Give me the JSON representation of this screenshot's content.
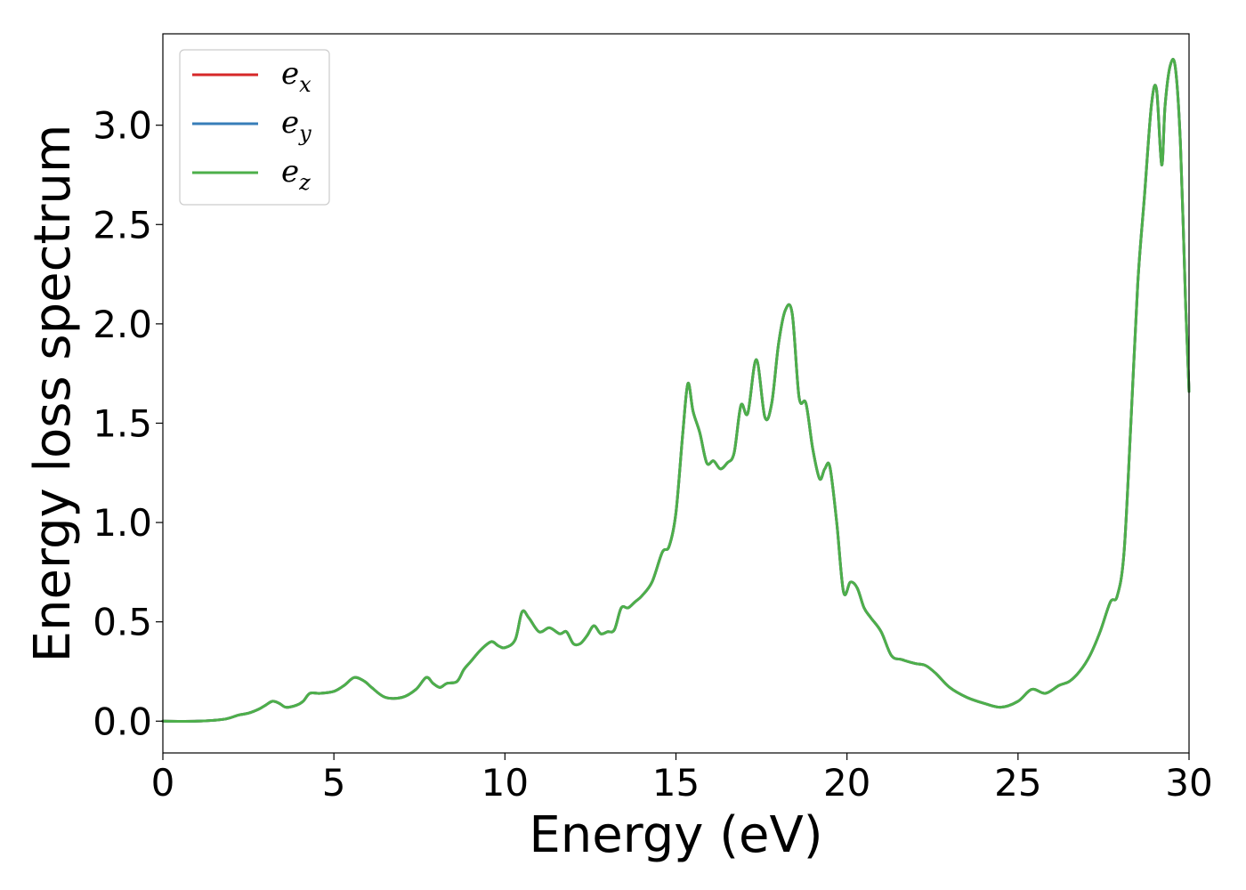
{
  "chart_data": {
    "type": "line",
    "title": "",
    "xlabel": "Energy (eV)",
    "ylabel": "Energy loss spectrum",
    "xlim": [
      0,
      30
    ],
    "ylim": [
      -0.16,
      3.46
    ],
    "xticks": [
      0,
      5,
      10,
      15,
      20,
      25,
      30
    ],
    "xtick_labels": [
      "0",
      "5",
      "10",
      "15",
      "20",
      "25",
      "30"
    ],
    "yticks": [
      0.0,
      0.5,
      1.0,
      1.5,
      2.0,
      2.5,
      3.0
    ],
    "ytick_labels": [
      "0.0",
      "0.5",
      "1.0",
      "1.5",
      "2.0",
      "2.5",
      "3.0"
    ],
    "grid": false,
    "legend_position": "top-left",
    "series": [
      {
        "name": "e_x",
        "label_base": "e",
        "label_sub": "x",
        "color": "#d62728"
      },
      {
        "name": "e_y",
        "label_base": "e",
        "label_sub": "y",
        "color": "#377eb8"
      },
      {
        "name": "e_z",
        "label_base": "e",
        "label_sub": "z",
        "color": "#4daf4a"
      }
    ],
    "x": [
      0,
      1,
      1.8,
      2.2,
      2.5,
      2.8,
      3.0,
      3.2,
      3.4,
      3.6,
      3.9,
      4.1,
      4.3,
      4.6,
      5.0,
      5.3,
      5.6,
      5.9,
      6.1,
      6.5,
      7.0,
      7.4,
      7.7,
      7.9,
      8.1,
      8.3,
      8.6,
      8.8,
      9.0,
      9.3,
      9.6,
      9.8,
      10.0,
      10.3,
      10.5,
      10.7,
      11.0,
      11.3,
      11.6,
      11.8,
      12.0,
      12.2,
      12.4,
      12.6,
      12.8,
      13.0,
      13.2,
      13.4,
      13.6,
      13.8,
      14.0,
      14.3,
      14.6,
      14.8,
      15.0,
      15.2,
      15.35,
      15.5,
      15.7,
      15.9,
      16.1,
      16.3,
      16.5,
      16.7,
      16.9,
      17.1,
      17.35,
      17.6,
      17.8,
      18.0,
      18.2,
      18.4,
      18.6,
      18.8,
      19.0,
      19.2,
      19.35,
      19.5,
      19.7,
      19.9,
      20.1,
      20.3,
      20.5,
      20.7,
      21.0,
      21.3,
      21.6,
      22.0,
      22.3,
      22.6,
      23.0,
      23.5,
      24.0,
      24.5,
      25.0,
      25.4,
      25.8,
      26.2,
      26.5,
      26.8,
      27.1,
      27.4,
      27.7,
      27.9,
      28.1,
      28.3,
      28.5,
      28.7,
      28.9,
      29.05,
      29.2,
      29.3,
      29.45,
      29.6,
      29.75,
      29.9,
      30.0
    ],
    "y": [
      0.0,
      0.0,
      0.01,
      0.03,
      0.04,
      0.06,
      0.08,
      0.1,
      0.09,
      0.07,
      0.08,
      0.1,
      0.14,
      0.14,
      0.15,
      0.18,
      0.22,
      0.2,
      0.17,
      0.12,
      0.12,
      0.16,
      0.22,
      0.19,
      0.17,
      0.19,
      0.2,
      0.26,
      0.3,
      0.36,
      0.4,
      0.38,
      0.37,
      0.41,
      0.55,
      0.52,
      0.45,
      0.47,
      0.44,
      0.45,
      0.39,
      0.39,
      0.43,
      0.48,
      0.44,
      0.45,
      0.46,
      0.57,
      0.57,
      0.6,
      0.63,
      0.7,
      0.85,
      0.88,
      1.05,
      1.45,
      1.7,
      1.56,
      1.45,
      1.3,
      1.31,
      1.27,
      1.3,
      1.35,
      1.59,
      1.55,
      1.82,
      1.53,
      1.6,
      1.9,
      2.07,
      2.05,
      1.63,
      1.6,
      1.37,
      1.22,
      1.27,
      1.28,
      1.0,
      0.65,
      0.7,
      0.67,
      0.57,
      0.52,
      0.45,
      0.33,
      0.31,
      0.29,
      0.28,
      0.24,
      0.17,
      0.12,
      0.09,
      0.07,
      0.1,
      0.16,
      0.14,
      0.18,
      0.2,
      0.25,
      0.33,
      0.45,
      0.6,
      0.63,
      0.85,
      1.5,
      2.2,
      2.65,
      3.1,
      3.18,
      2.8,
      3.1,
      3.3,
      3.29,
      2.9,
      2.1,
      1.66
    ]
  }
}
